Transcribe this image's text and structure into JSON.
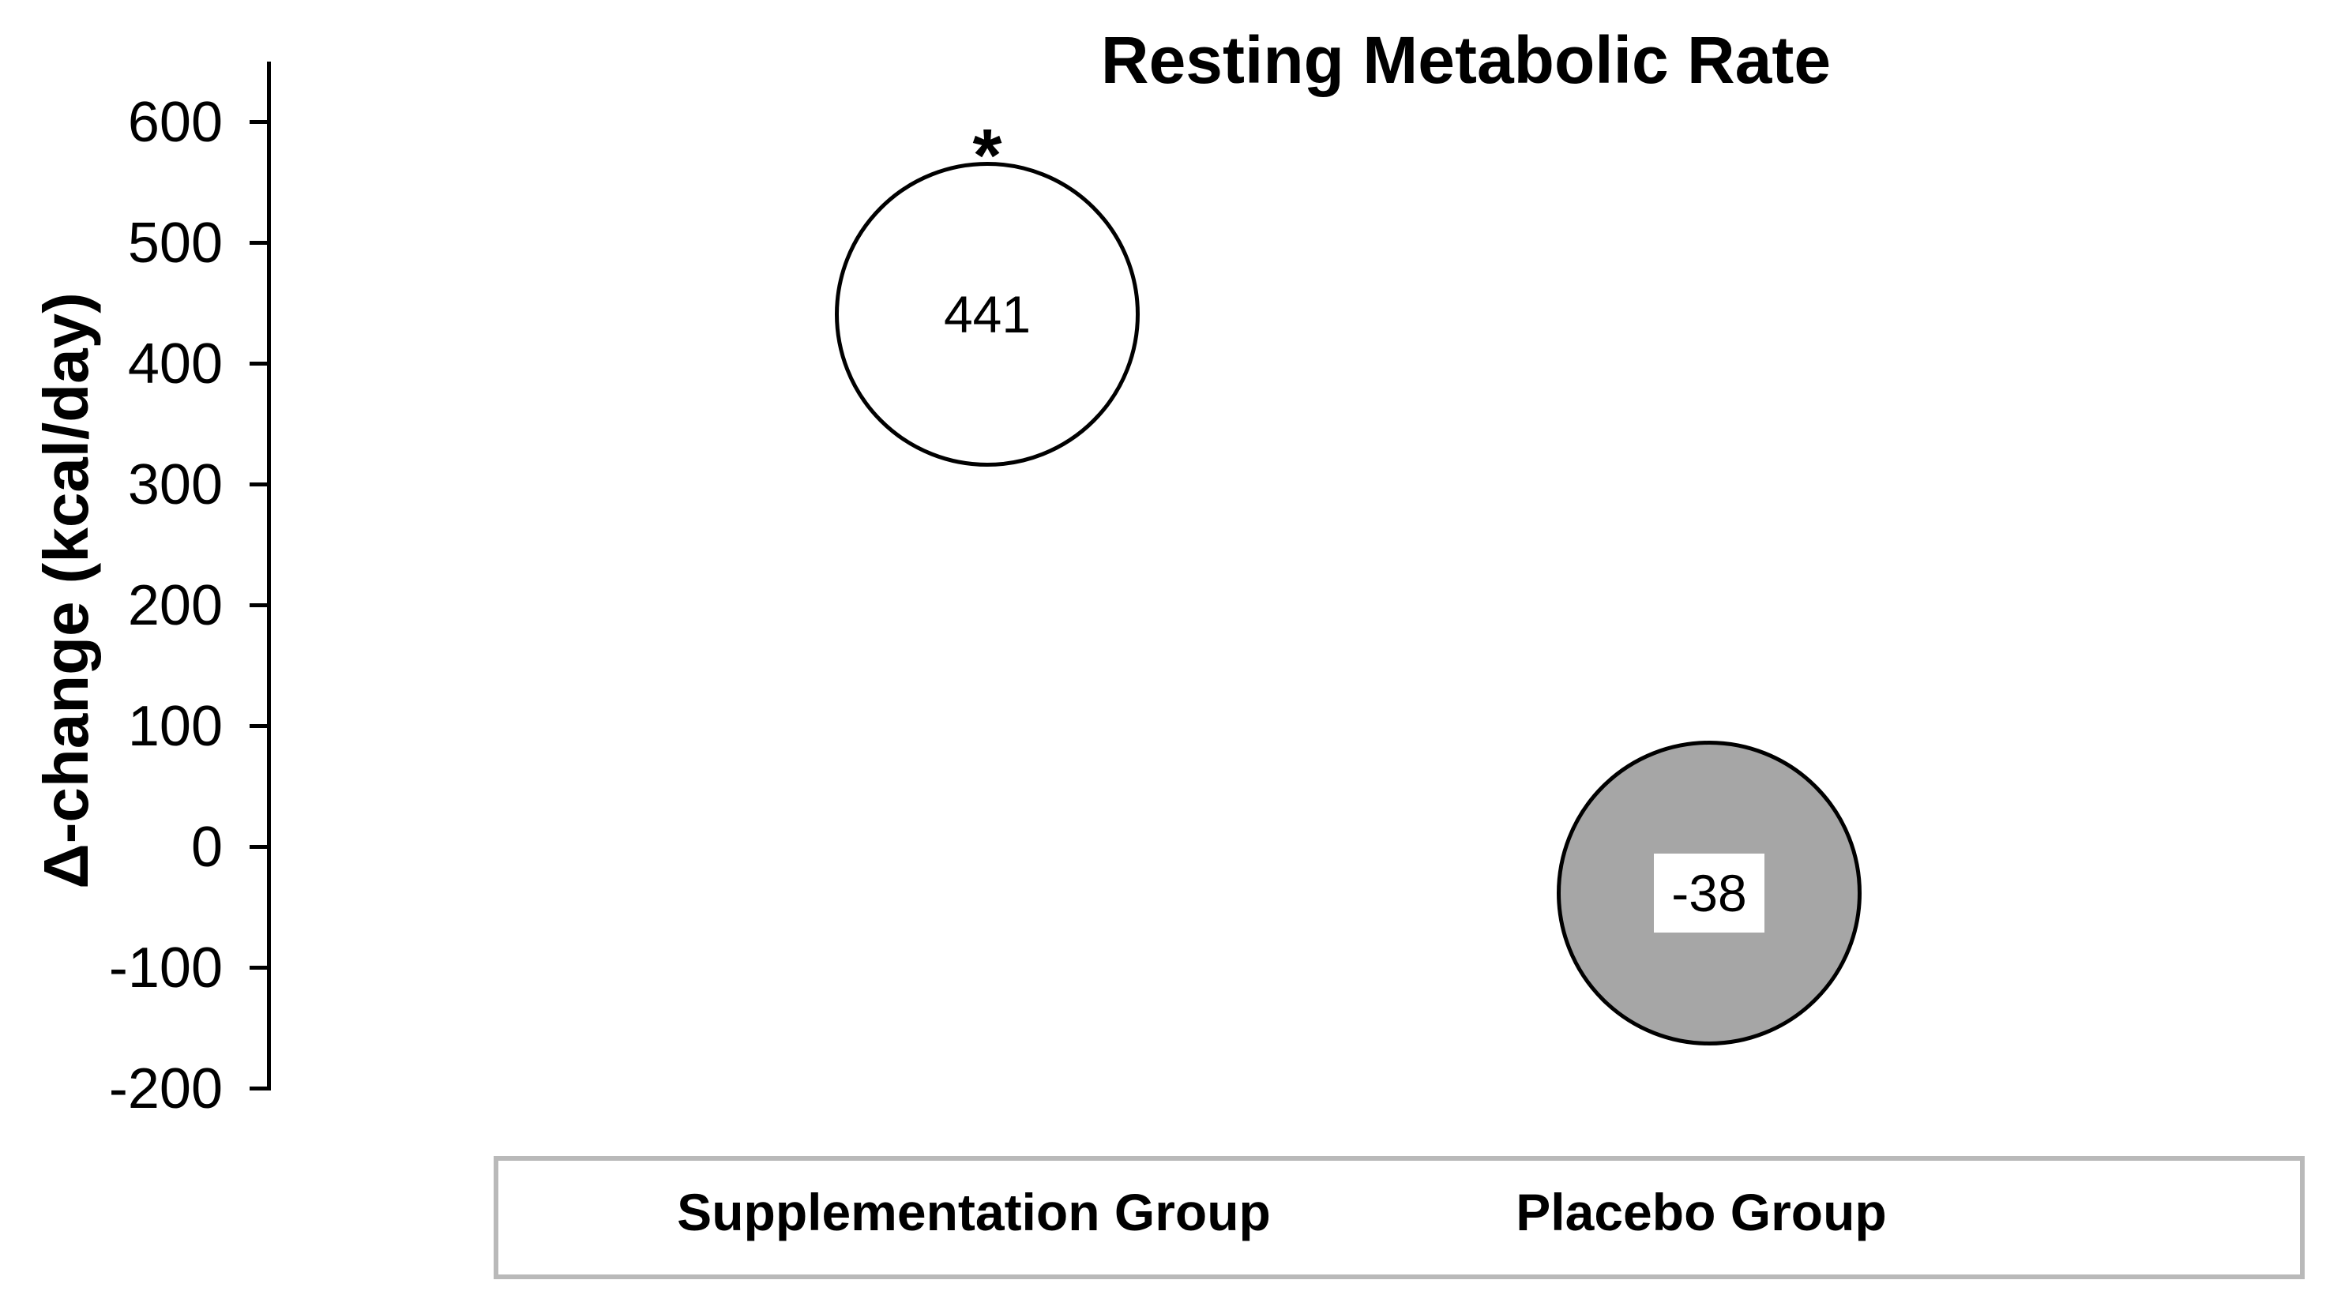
{
  "chart_data": {
    "type": "scatter",
    "title": "Resting Metabolic Rate",
    "ylabel": "Δ-change (kcal/day)",
    "xlabel": "",
    "ylim": [
      -200,
      650
    ],
    "yticks": [
      600,
      500,
      400,
      300,
      200,
      100,
      0,
      -100,
      -200
    ],
    "categories": [
      "Supplementation Group",
      "Placebo Group"
    ],
    "points": [
      {
        "category": "Supplementation Group",
        "value": 441,
        "data_label": "441",
        "significance_marker": "*",
        "fill_color": "#ffffff",
        "stroke_color": "#000000"
      },
      {
        "category": "Placebo Group",
        "value": -38,
        "data_label": "-38",
        "significance_marker": "",
        "fill_color": "#a6a6a6",
        "stroke_color": "#000000",
        "label_background": "#ffffff"
      }
    ],
    "grid": false,
    "legend_position": "none"
  },
  "colors": {
    "background": "#ffffff",
    "axis": "#000000",
    "text": "#000000",
    "category_box_border": "#b9b9b9",
    "category_box_fill": "#ffffff"
  }
}
